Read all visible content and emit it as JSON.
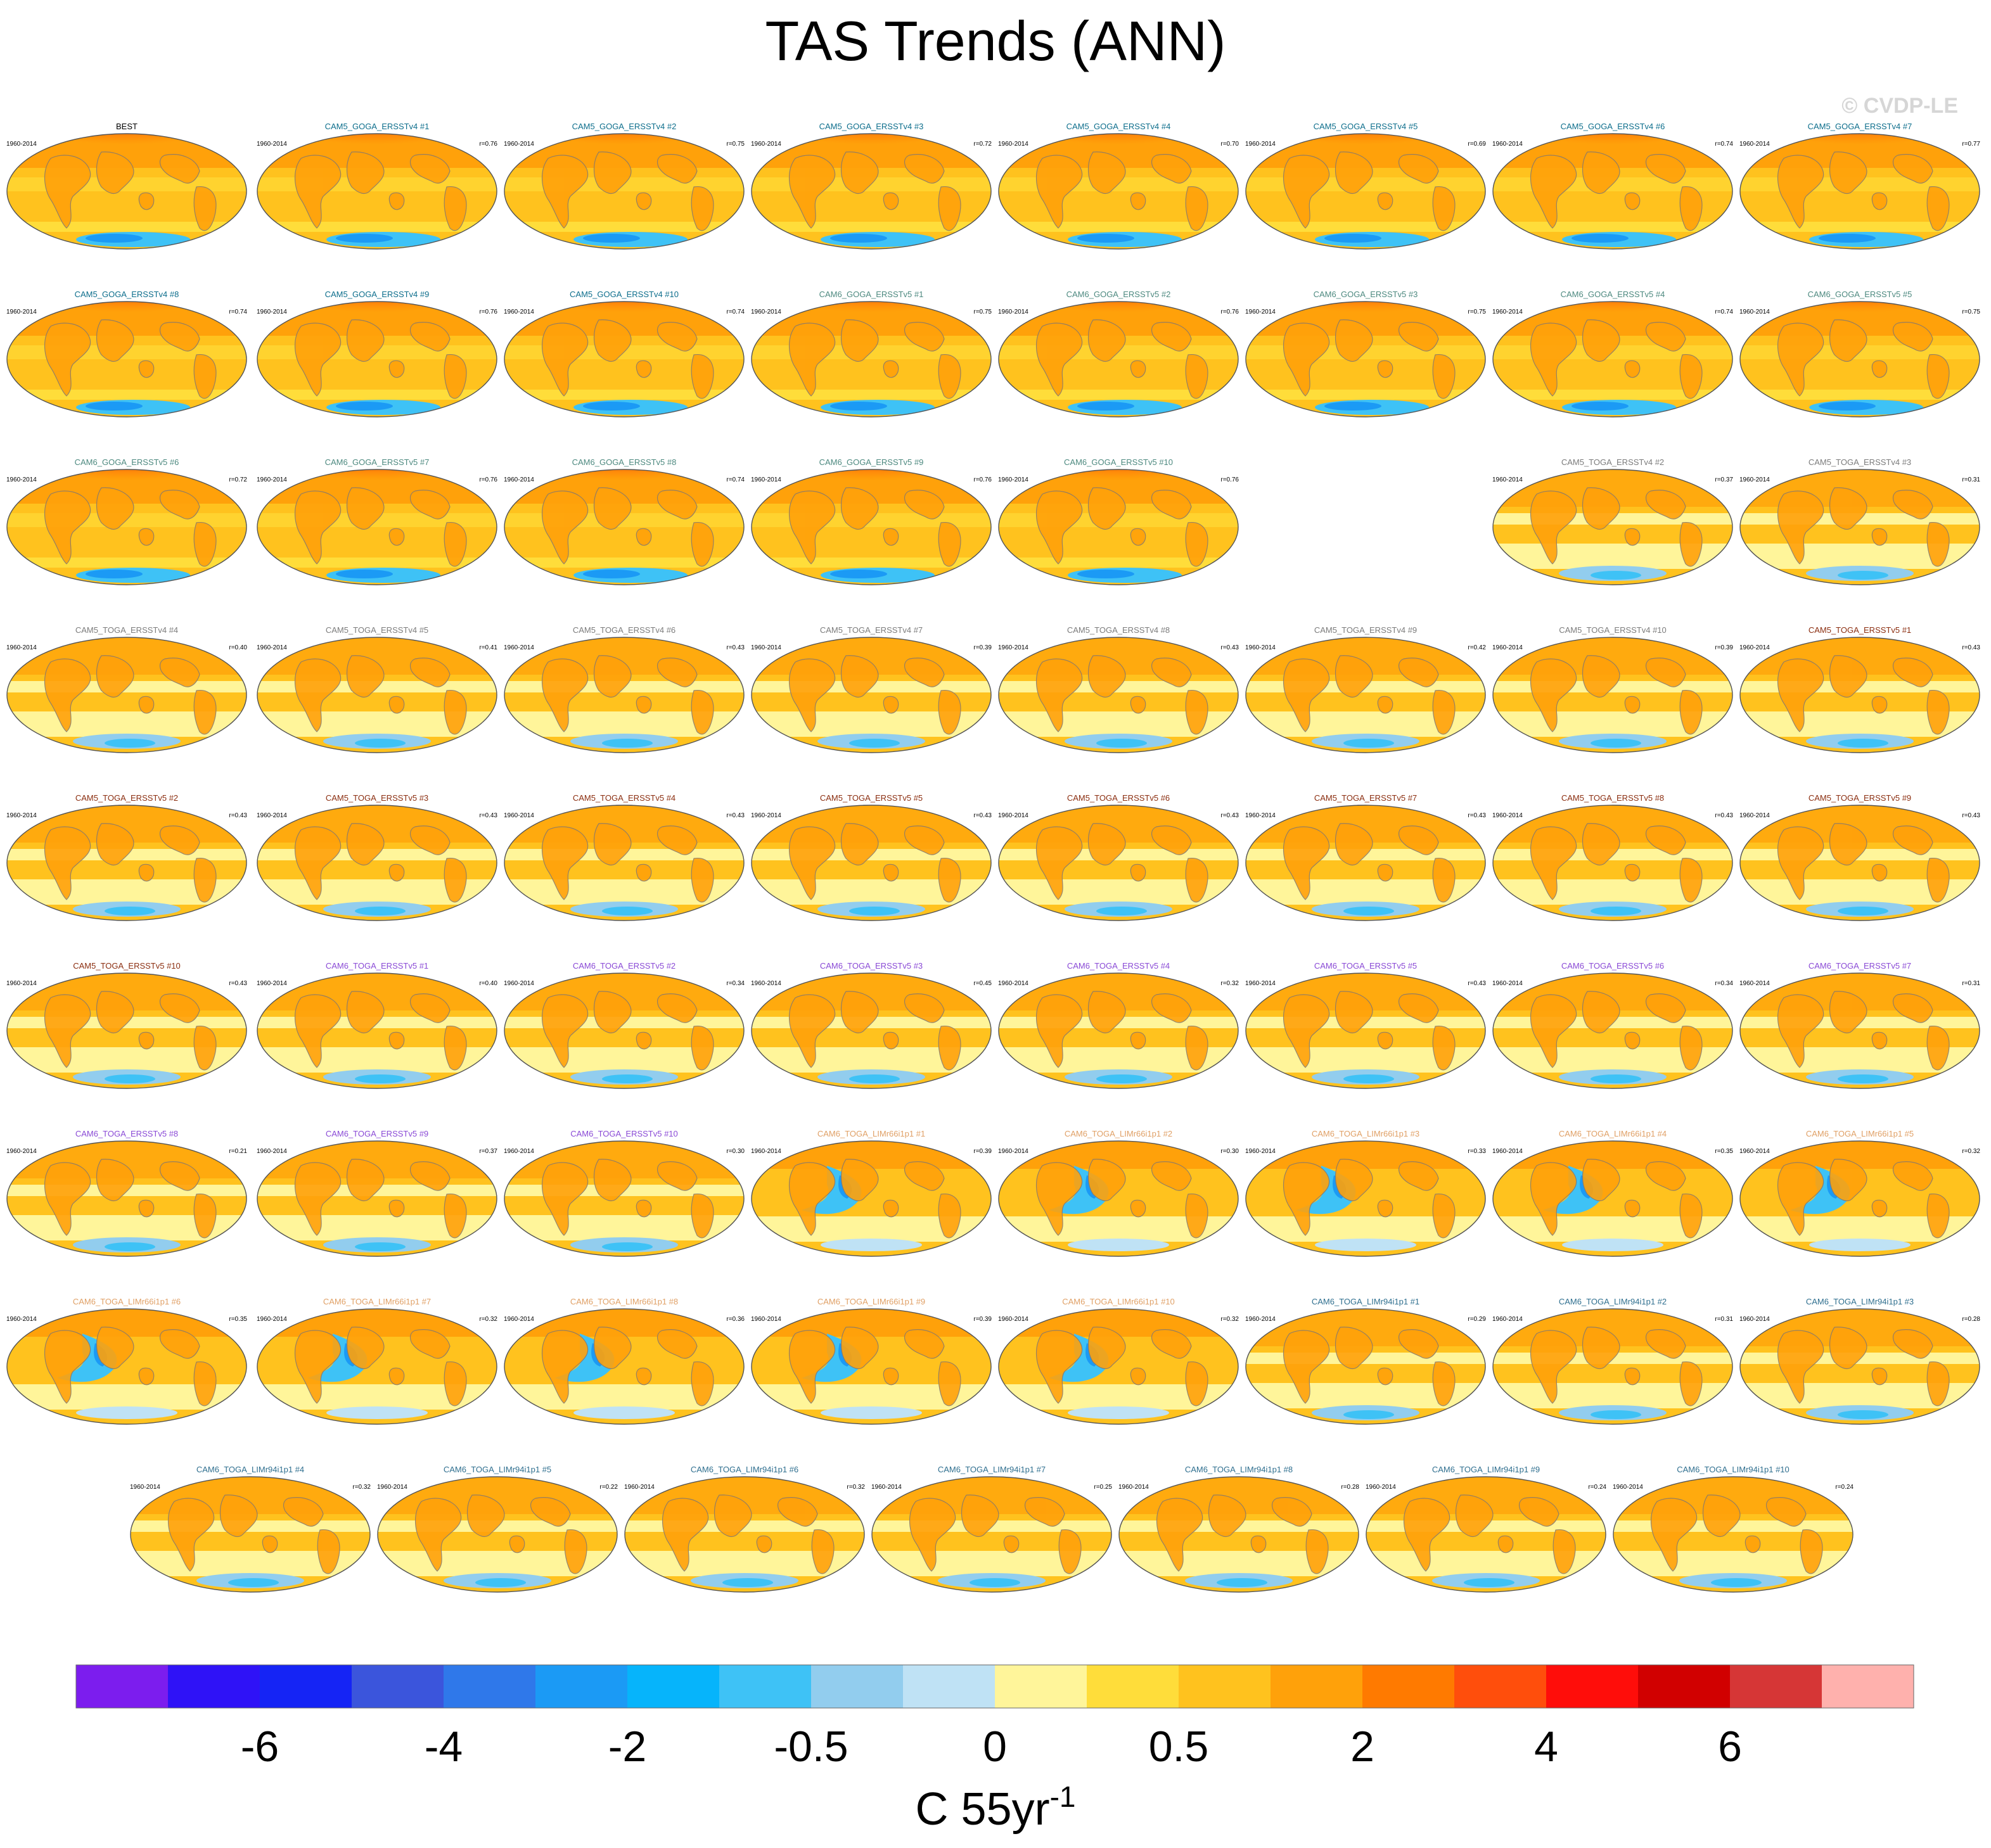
{
  "title": "TAS Trends (ANN)",
  "watermark": "© CVDP-LE",
  "period": "1960-2014",
  "colorbar": {
    "units_main": "C 55yr",
    "units_sup": "-1",
    "tick_labels": [
      "-6",
      "-4",
      "-2",
      "-0.5",
      "0",
      "0.5",
      "2",
      "4",
      "6"
    ],
    "colors": [
      "#7c1dee",
      "#2f12f7",
      "#1524f5",
      "#3b55dc",
      "#2f78ea",
      "#1b9af5",
      "#06b4fb",
      "#3ec2f6",
      "#92cdee",
      "#bfe2f5",
      "#fff59a",
      "#ffdd3a",
      "#ffc21e",
      "#ffa10a",
      "#ff7a00",
      "#ff4e0c",
      "#ff0d0a",
      "#d10000",
      "#d63636",
      "#ffb1ad"
    ]
  },
  "chart_data": {
    "type": "heatmap",
    "title": "TAS Trends (ANN)",
    "variable": "TAS",
    "season": "ANN",
    "period": "1960-2014",
    "units": "C 55yr-1",
    "colorbar_ticks": [
      -6,
      -4,
      -2,
      -0.5,
      0,
      0.5,
      2,
      4,
      6
    ],
    "panels": [
      {
        "name": "BEST",
        "r": "",
        "group": "best"
      },
      {
        "name": "CAM5_GOGA_ERSSTv4 #1",
        "r": "r=0.76",
        "group": "goga4"
      },
      {
        "name": "CAM5_GOGA_ERSSTv4 #2",
        "r": "r=0.75",
        "group": "goga4"
      },
      {
        "name": "CAM5_GOGA_ERSSTv4 #3",
        "r": "r=0.72",
        "group": "goga4"
      },
      {
        "name": "CAM5_GOGA_ERSSTv4 #4",
        "r": "r=0.70",
        "group": "goga4"
      },
      {
        "name": "CAM5_GOGA_ERSSTv4 #5",
        "r": "r=0.69",
        "group": "goga4"
      },
      {
        "name": "CAM5_GOGA_ERSSTv4 #6",
        "r": "r=0.74",
        "group": "goga4"
      },
      {
        "name": "CAM5_GOGA_ERSSTv4 #7",
        "r": "r=0.77",
        "group": "goga4"
      },
      {
        "name": "CAM5_GOGA_ERSSTv4 #8",
        "r": "r=0.74",
        "group": "goga4"
      },
      {
        "name": "CAM5_GOGA_ERSSTv4 #9",
        "r": "r=0.76",
        "group": "goga4"
      },
      {
        "name": "CAM5_GOGA_ERSSTv4 #10",
        "r": "r=0.74",
        "group": "goga4"
      },
      {
        "name": "CAM6_GOGA_ERSSTv5 #1",
        "r": "r=0.75",
        "group": "goga6"
      },
      {
        "name": "CAM6_GOGA_ERSSTv5 #2",
        "r": "r=0.76",
        "group": "goga6"
      },
      {
        "name": "CAM6_GOGA_ERSSTv5 #3",
        "r": "r=0.75",
        "group": "goga6"
      },
      {
        "name": "CAM6_GOGA_ERSSTv5 #4",
        "r": "r=0.74",
        "group": "goga6"
      },
      {
        "name": "CAM6_GOGA_ERSSTv5 #5",
        "r": "r=0.75",
        "group": "goga6"
      },
      {
        "name": "CAM6_GOGA_ERSSTv5 #6",
        "r": "r=0.72",
        "group": "goga6"
      },
      {
        "name": "CAM6_GOGA_ERSSTv5 #7",
        "r": "r=0.76",
        "group": "goga6"
      },
      {
        "name": "CAM6_GOGA_ERSSTv5 #8",
        "r": "r=0.74",
        "group": "goga6"
      },
      {
        "name": "CAM6_GOGA_ERSSTv5 #9",
        "r": "r=0.76",
        "group": "goga6"
      },
      {
        "name": "CAM6_GOGA_ERSSTv5 #10",
        "r": "r=0.76",
        "group": "goga6"
      },
      null,
      {
        "name": "CAM5_TOGA_ERSSTv4 #2",
        "r": "r=0.37",
        "group": "toga4"
      },
      {
        "name": "CAM5_TOGA_ERSSTv4 #3",
        "r": "r=0.31",
        "group": "toga4"
      },
      {
        "name": "CAM5_TOGA_ERSSTv4 #4",
        "r": "r=0.40",
        "group": "toga4"
      },
      {
        "name": "CAM5_TOGA_ERSSTv4 #5",
        "r": "r=0.41",
        "group": "toga4"
      },
      {
        "name": "CAM5_TOGA_ERSSTv4 #6",
        "r": "r=0.43",
        "group": "toga4"
      },
      {
        "name": "CAM5_TOGA_ERSSTv4 #7",
        "r": "r=0.39",
        "group": "toga4"
      },
      {
        "name": "CAM5_TOGA_ERSSTv4 #8",
        "r": "r=0.43",
        "group": "toga4"
      },
      {
        "name": "CAM5_TOGA_ERSSTv4 #9",
        "r": "r=0.42",
        "group": "toga4"
      },
      {
        "name": "CAM5_TOGA_ERSSTv4 #10",
        "r": "r=0.39",
        "group": "toga4"
      },
      {
        "name": "CAM5_TOGA_ERSSTv5 #1",
        "r": "r=0.43",
        "group": "toga5"
      },
      {
        "name": "CAM5_TOGA_ERSSTv5 #2",
        "r": "r=0.43",
        "group": "toga5"
      },
      {
        "name": "CAM5_TOGA_ERSSTv5 #3",
        "r": "r=0.43",
        "group": "toga5"
      },
      {
        "name": "CAM5_TOGA_ERSSTv5 #4",
        "r": "r=0.43",
        "group": "toga5"
      },
      {
        "name": "CAM5_TOGA_ERSSTv5 #5",
        "r": "r=0.43",
        "group": "toga5"
      },
      {
        "name": "CAM5_TOGA_ERSSTv5 #6",
        "r": "r=0.43",
        "group": "toga5"
      },
      {
        "name": "CAM5_TOGA_ERSSTv5 #7",
        "r": "r=0.43",
        "group": "toga5"
      },
      {
        "name": "CAM5_TOGA_ERSSTv5 #8",
        "r": "r=0.43",
        "group": "toga5"
      },
      {
        "name": "CAM5_TOGA_ERSSTv5 #9",
        "r": "r=0.43",
        "group": "toga5"
      },
      {
        "name": "CAM5_TOGA_ERSSTv5 #10",
        "r": "r=0.43",
        "group": "toga5"
      },
      {
        "name": "CAM6_TOGA_ERSSTv5 #1",
        "r": "r=0.40",
        "group": "toga6"
      },
      {
        "name": "CAM6_TOGA_ERSSTv5 #2",
        "r": "r=0.34",
        "group": "toga6"
      },
      {
        "name": "CAM6_TOGA_ERSSTv5 #3",
        "r": "r=0.45",
        "group": "toga6"
      },
      {
        "name": "CAM6_TOGA_ERSSTv5 #4",
        "r": "r=0.32",
        "group": "toga6"
      },
      {
        "name": "CAM6_TOGA_ERSSTv5 #5",
        "r": "r=0.43",
        "group": "toga6"
      },
      {
        "name": "CAM6_TOGA_ERSSTv5 #6",
        "r": "r=0.34",
        "group": "toga6"
      },
      {
        "name": "CAM6_TOGA_ERSSTv5 #7",
        "r": "r=0.31",
        "group": "toga6"
      },
      {
        "name": "CAM6_TOGA_ERSSTv5 #8",
        "r": "r=0.21",
        "group": "toga6"
      },
      {
        "name": "CAM6_TOGA_ERSSTv5 #9",
        "r": "r=0.37",
        "group": "toga6"
      },
      {
        "name": "CAM6_TOGA_ERSSTv5 #10",
        "r": "r=0.30",
        "group": "toga6"
      },
      {
        "name": "CAM6_TOGA_LIMr66i1p1 #1",
        "r": "r=0.39",
        "group": "lim66"
      },
      {
        "name": "CAM6_TOGA_LIMr66i1p1 #2",
        "r": "r=0.30",
        "group": "lim66"
      },
      {
        "name": "CAM6_TOGA_LIMr66i1p1 #3",
        "r": "r=0.33",
        "group": "lim66"
      },
      {
        "name": "CAM6_TOGA_LIMr66i1p1 #4",
        "r": "r=0.35",
        "group": "lim66"
      },
      {
        "name": "CAM6_TOGA_LIMr66i1p1 #5",
        "r": "r=0.32",
        "group": "lim66"
      },
      {
        "name": "CAM6_TOGA_LIMr66i1p1 #6",
        "r": "r=0.35",
        "group": "lim66"
      },
      {
        "name": "CAM6_TOGA_LIMr66i1p1 #7",
        "r": "r=0.32",
        "group": "lim66"
      },
      {
        "name": "CAM6_TOGA_LIMr66i1p1 #8",
        "r": "r=0.36",
        "group": "lim66"
      },
      {
        "name": "CAM6_TOGA_LIMr66i1p1 #9",
        "r": "r=0.39",
        "group": "lim66"
      },
      {
        "name": "CAM6_TOGA_LIMr66i1p1 #10",
        "r": "r=0.32",
        "group": "lim66"
      },
      {
        "name": "CAM6_TOGA_LIMr94i1p1 #1",
        "r": "r=0.29",
        "group": "lim94"
      },
      {
        "name": "CAM6_TOGA_LIMr94i1p1 #2",
        "r": "r=0.31",
        "group": "lim94"
      },
      {
        "name": "CAM6_TOGA_LIMr94i1p1 #3",
        "r": "r=0.28",
        "group": "lim94"
      },
      {
        "name": "CAM6_TOGA_LIMr94i1p1 #4",
        "r": "r=0.32",
        "group": "lim94"
      },
      {
        "name": "CAM6_TOGA_LIMr94i1p1 #5",
        "r": "r=0.22",
        "group": "lim94"
      },
      {
        "name": "CAM6_TOGA_LIMr94i1p1 #6",
        "r": "r=0.32",
        "group": "lim94"
      },
      {
        "name": "CAM6_TOGA_LIMr94i1p1 #7",
        "r": "r=0.25",
        "group": "lim94"
      },
      {
        "name": "CAM6_TOGA_LIMr94i1p1 #8",
        "r": "r=0.28",
        "group": "lim94"
      },
      {
        "name": "CAM6_TOGA_LIMr94i1p1 #9",
        "r": "r=0.24",
        "group": "lim94"
      },
      {
        "name": "CAM6_TOGA_LIMr94i1p1 #10",
        "r": "r=0.24",
        "group": "lim94"
      }
    ],
    "group_label_colors": {
      "best": "#000000",
      "goga4": "#0d6e8c",
      "goga6": "#4e8a80",
      "toga4": "#7c7c7c",
      "toga5": "#8b2e10",
      "toga6": "#8a4ad6",
      "lim66": "#e0a066",
      "lim94": "#2f6f8f"
    }
  }
}
